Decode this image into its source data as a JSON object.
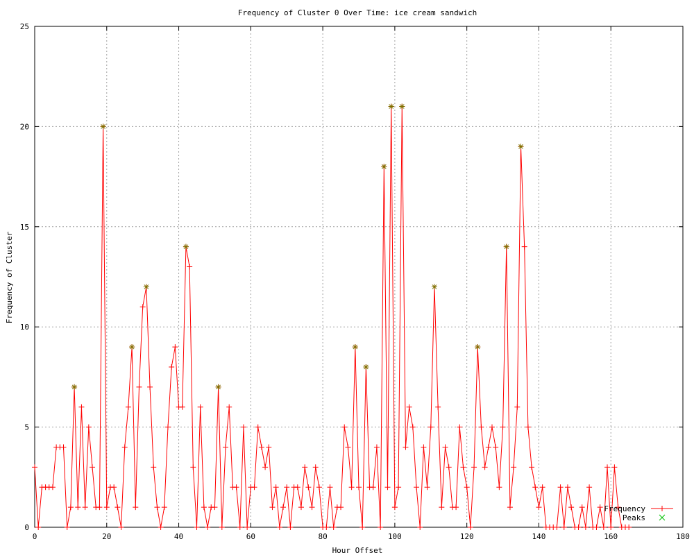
{
  "chart_data": {
    "type": "line",
    "title": "Frequency of Cluster 0 Over Time: ice cream sandwich",
    "xlabel": "Hour Offset",
    "ylabel": "Frequency of Cluster",
    "xlim": [
      0,
      180
    ],
    "ylim": [
      0,
      25
    ],
    "xticks": [
      0,
      20,
      40,
      60,
      80,
      100,
      120,
      140,
      160,
      180
    ],
    "yticks": [
      0,
      5,
      10,
      15,
      20,
      25
    ],
    "grid": true,
    "legend_position": "bottom-right",
    "colors": {
      "frequency": "#ff0000",
      "peaks": "#00c000",
      "peak_overlay": "#807000"
    },
    "series": [
      {
        "name": "Frequency",
        "style": "linespoints",
        "x": [
          0,
          1,
          2,
          3,
          4,
          5,
          6,
          7,
          8,
          9,
          10,
          11,
          12,
          13,
          14,
          15,
          16,
          17,
          18,
          19,
          20,
          21,
          22,
          23,
          24,
          25,
          26,
          27,
          28,
          29,
          30,
          31,
          32,
          33,
          34,
          35,
          36,
          37,
          38,
          39,
          40,
          41,
          42,
          43,
          44,
          45,
          46,
          47,
          48,
          49,
          50,
          51,
          52,
          53,
          54,
          55,
          56,
          57,
          58,
          59,
          60,
          61,
          62,
          63,
          64,
          65,
          66,
          67,
          68,
          69,
          70,
          71,
          72,
          73,
          74,
          75,
          76,
          77,
          78,
          79,
          80,
          81,
          82,
          83,
          84,
          85,
          86,
          87,
          88,
          89,
          90,
          91,
          92,
          93,
          94,
          95,
          96,
          97,
          98,
          99,
          100,
          101,
          102,
          103,
          104,
          105,
          106,
          107,
          108,
          109,
          110,
          111,
          112,
          113,
          114,
          115,
          116,
          117,
          118,
          119,
          120,
          121,
          122,
          123,
          124,
          125,
          126,
          127,
          128,
          129,
          130,
          131,
          132,
          133,
          134,
          135,
          136,
          137,
          138,
          139,
          140,
          141,
          142,
          143,
          144,
          145,
          146,
          147,
          148,
          149,
          150,
          151,
          152,
          153,
          154,
          155,
          156,
          157,
          158,
          159,
          160,
          161,
          162,
          163,
          164,
          165
        ],
        "y": [
          3,
          0,
          2,
          2,
          2,
          2,
          4,
          4,
          4,
          0,
          1,
          7,
          1,
          6,
          1,
          5,
          3,
          1,
          1,
          20,
          1,
          2,
          2,
          1,
          0,
          4,
          6,
          9,
          1,
          7,
          11,
          12,
          7,
          3,
          1,
          0,
          1,
          5,
          8,
          9,
          6,
          6,
          14,
          13,
          3,
          0,
          6,
          1,
          0,
          1,
          1,
          7,
          0,
          4,
          6,
          2,
          2,
          0,
          5,
          0,
          2,
          2,
          5,
          4,
          3,
          4,
          1,
          2,
          0,
          1,
          2,
          0,
          2,
          2,
          1,
          3,
          2,
          1,
          3,
          2,
          0,
          0,
          2,
          0,
          1,
          1,
          5,
          4,
          2,
          9,
          2,
          0,
          8,
          2,
          2,
          4,
          0,
          18,
          2,
          21,
          1,
          2,
          21,
          4,
          6,
          5,
          2,
          0,
          4,
          2,
          5,
          12,
          6,
          1,
          4,
          3,
          1,
          1,
          5,
          3,
          2,
          0,
          3,
          9,
          5,
          3,
          4,
          5,
          4,
          2,
          5,
          14,
          1,
          3,
          6,
          19,
          14,
          5,
          3,
          2,
          1,
          2,
          0,
          0,
          0,
          0,
          2,
          0,
          2,
          1,
          0,
          0,
          1,
          0,
          2,
          0,
          0,
          1,
          0,
          3,
          0,
          3,
          1,
          0,
          0,
          0
        ]
      },
      {
        "name": "Peaks",
        "style": "points",
        "x": [
          11,
          19,
          27,
          31,
          42,
          51,
          89,
          92,
          97,
          99,
          102,
          111,
          123,
          131,
          135
        ],
        "y": [
          7,
          20,
          9,
          12,
          14,
          7,
          9,
          8,
          18,
          21,
          21,
          12,
          9,
          14,
          19
        ]
      }
    ]
  }
}
